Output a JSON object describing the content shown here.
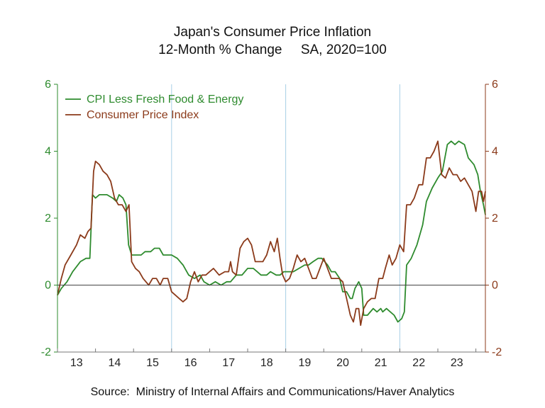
{
  "chart_data": {
    "type": "line",
    "title": "Japan's Consumer Price Inflation",
    "subtitle": "12-Month % Change     SA, 2020=100",
    "ylim": [
      -2,
      6
    ],
    "yticks": [
      "-2",
      "0",
      "2",
      "4",
      "6"
    ],
    "y_right_ticks": [
      "-2",
      "0",
      "2",
      "4",
      "6"
    ],
    "xlim": [
      2013,
      2024.25
    ],
    "x_tick_labels": [
      {
        "label": "13",
        "x": 2013.5
      },
      {
        "label": "14",
        "x": 2014.5
      },
      {
        "label": "15",
        "x": 2015.5
      },
      {
        "label": "16",
        "x": 2016.5
      },
      {
        "label": "17",
        "x": 2017.5
      },
      {
        "label": "18",
        "x": 2018.5
      },
      {
        "label": "19",
        "x": 2019.5
      },
      {
        "label": "20",
        "x": 2020.5
      },
      {
        "label": "21",
        "x": 2021.5
      },
      {
        "label": "22",
        "x": 2022.5
      },
      {
        "label": "23",
        "x": 2023.5
      }
    ],
    "vertical_gridlines": [
      2016,
      2019,
      2022
    ],
    "legend_position": "top-left",
    "series": [
      {
        "name": "CPI Less Fresh Food & Energy",
        "color": "#2e8b2e",
        "points": [
          [
            2013.0,
            -0.3
          ],
          [
            2013.1,
            -0.1
          ],
          [
            2013.25,
            0.1
          ],
          [
            2013.4,
            0.4
          ],
          [
            2013.6,
            0.7
          ],
          [
            2013.75,
            0.8
          ],
          [
            2013.85,
            0.8
          ],
          [
            2013.92,
            2.7
          ],
          [
            2014.0,
            2.6
          ],
          [
            2014.1,
            2.7
          ],
          [
            2014.3,
            2.7
          ],
          [
            2014.45,
            2.6
          ],
          [
            2014.55,
            2.5
          ],
          [
            2014.62,
            2.7
          ],
          [
            2014.72,
            2.6
          ],
          [
            2014.8,
            2.4
          ],
          [
            2014.87,
            1.2
          ],
          [
            2014.95,
            0.9
          ],
          [
            2015.05,
            0.9
          ],
          [
            2015.2,
            0.9
          ],
          [
            2015.3,
            1.0
          ],
          [
            2015.45,
            1.0
          ],
          [
            2015.55,
            1.1
          ],
          [
            2015.68,
            1.1
          ],
          [
            2015.78,
            0.9
          ],
          [
            2015.9,
            0.9
          ],
          [
            2016.0,
            0.9
          ],
          [
            2016.15,
            0.8
          ],
          [
            2016.3,
            0.6
          ],
          [
            2016.45,
            0.3
          ],
          [
            2016.6,
            0.2
          ],
          [
            2016.75,
            0.3
          ],
          [
            2016.85,
            0.1
          ],
          [
            2017.0,
            0.0
          ],
          [
            2017.15,
            0.1
          ],
          [
            2017.3,
            0.0
          ],
          [
            2017.45,
            0.1
          ],
          [
            2017.55,
            0.1
          ],
          [
            2017.7,
            0.3
          ],
          [
            2017.85,
            0.3
          ],
          [
            2018.0,
            0.5
          ],
          [
            2018.15,
            0.5
          ],
          [
            2018.25,
            0.4
          ],
          [
            2018.35,
            0.3
          ],
          [
            2018.5,
            0.3
          ],
          [
            2018.6,
            0.4
          ],
          [
            2018.75,
            0.3
          ],
          [
            2018.85,
            0.3
          ],
          [
            2018.95,
            0.4
          ],
          [
            2019.1,
            0.4
          ],
          [
            2019.2,
            0.4
          ],
          [
            2019.35,
            0.5
          ],
          [
            2019.5,
            0.6
          ],
          [
            2019.6,
            0.6
          ],
          [
            2019.72,
            0.7
          ],
          [
            2019.85,
            0.8
          ],
          [
            2019.95,
            0.8
          ],
          [
            2020.1,
            0.6
          ],
          [
            2020.2,
            0.4
          ],
          [
            2020.3,
            0.4
          ],
          [
            2020.42,
            0.2
          ],
          [
            2020.5,
            -0.2
          ],
          [
            2020.6,
            -0.2
          ],
          [
            2020.7,
            -0.4
          ],
          [
            2020.75,
            -0.4
          ],
          [
            2020.82,
            -0.1
          ],
          [
            2020.92,
            0.1
          ],
          [
            2021.0,
            -0.1
          ],
          [
            2021.05,
            -0.9
          ],
          [
            2021.15,
            -0.9
          ],
          [
            2021.3,
            -0.7
          ],
          [
            2021.4,
            -0.8
          ],
          [
            2021.5,
            -0.7
          ],
          [
            2021.55,
            -0.8
          ],
          [
            2021.65,
            -0.7
          ],
          [
            2021.75,
            -0.8
          ],
          [
            2021.85,
            -0.9
          ],
          [
            2021.95,
            -1.1
          ],
          [
            2022.05,
            -1.0
          ],
          [
            2022.12,
            -0.8
          ],
          [
            2022.18,
            0.6
          ],
          [
            2022.3,
            0.8
          ],
          [
            2022.45,
            1.2
          ],
          [
            2022.6,
            1.8
          ],
          [
            2022.7,
            2.5
          ],
          [
            2022.85,
            2.9
          ],
          [
            2023.0,
            3.2
          ],
          [
            2023.12,
            3.4
          ],
          [
            2023.25,
            4.2
          ],
          [
            2023.35,
            4.3
          ],
          [
            2023.45,
            4.2
          ],
          [
            2023.55,
            4.3
          ],
          [
            2023.7,
            4.2
          ],
          [
            2023.8,
            3.8
          ],
          [
            2023.95,
            3.6
          ],
          [
            2024.05,
            3.3
          ],
          [
            2024.12,
            2.8
          ],
          [
            2024.2,
            2.4
          ],
          [
            2024.25,
            2.1
          ]
        ]
      },
      {
        "name": "Consumer Price Index",
        "color": "#8b3a1a",
        "points": [
          [
            2013.0,
            -0.3
          ],
          [
            2013.1,
            0.2
          ],
          [
            2013.2,
            0.6
          ],
          [
            2013.35,
            0.9
          ],
          [
            2013.5,
            1.2
          ],
          [
            2013.6,
            1.5
          ],
          [
            2013.72,
            1.4
          ],
          [
            2013.8,
            1.6
          ],
          [
            2013.88,
            1.7
          ],
          [
            2013.95,
            3.4
          ],
          [
            2014.0,
            3.7
          ],
          [
            2014.1,
            3.6
          ],
          [
            2014.2,
            3.4
          ],
          [
            2014.3,
            3.3
          ],
          [
            2014.4,
            3.1
          ],
          [
            2014.5,
            2.6
          ],
          [
            2014.6,
            2.4
          ],
          [
            2014.7,
            2.4
          ],
          [
            2014.8,
            2.2
          ],
          [
            2014.88,
            2.4
          ],
          [
            2014.95,
            0.7
          ],
          [
            2015.05,
            0.5
          ],
          [
            2015.15,
            0.4
          ],
          [
            2015.25,
            0.2
          ],
          [
            2015.4,
            0.0
          ],
          [
            2015.5,
            0.2
          ],
          [
            2015.6,
            0.2
          ],
          [
            2015.7,
            0.0
          ],
          [
            2015.78,
            0.2
          ],
          [
            2015.9,
            0.2
          ],
          [
            2016.0,
            -0.2
          ],
          [
            2016.1,
            -0.3
          ],
          [
            2016.2,
            -0.4
          ],
          [
            2016.3,
            -0.5
          ],
          [
            2016.4,
            -0.4
          ],
          [
            2016.5,
            0.1
          ],
          [
            2016.6,
            0.4
          ],
          [
            2016.7,
            0.1
          ],
          [
            2016.8,
            0.3
          ],
          [
            2016.9,
            0.3
          ],
          [
            2017.0,
            0.4
          ],
          [
            2017.1,
            0.5
          ],
          [
            2017.25,
            0.3
          ],
          [
            2017.4,
            0.4
          ],
          [
            2017.5,
            0.4
          ],
          [
            2017.55,
            0.7
          ],
          [
            2017.6,
            0.4
          ],
          [
            2017.7,
            0.3
          ],
          [
            2017.8,
            1.1
          ],
          [
            2017.9,
            1.3
          ],
          [
            2018.0,
            1.4
          ],
          [
            2018.1,
            1.2
          ],
          [
            2018.2,
            0.7
          ],
          [
            2018.3,
            0.7
          ],
          [
            2018.4,
            0.7
          ],
          [
            2018.5,
            0.9
          ],
          [
            2018.6,
            1.3
          ],
          [
            2018.7,
            1.0
          ],
          [
            2018.78,
            1.4
          ],
          [
            2018.85,
            0.8
          ],
          [
            2018.92,
            0.3
          ],
          [
            2019.0,
            0.1
          ],
          [
            2019.1,
            0.2
          ],
          [
            2019.2,
            0.5
          ],
          [
            2019.3,
            0.9
          ],
          [
            2019.4,
            0.7
          ],
          [
            2019.5,
            0.8
          ],
          [
            2019.6,
            0.5
          ],
          [
            2019.7,
            0.2
          ],
          [
            2019.8,
            0.2
          ],
          [
            2019.9,
            0.5
          ],
          [
            2020.0,
            0.8
          ],
          [
            2020.1,
            0.5
          ],
          [
            2020.2,
            0.2
          ],
          [
            2020.3,
            0.2
          ],
          [
            2020.4,
            0.2
          ],
          [
            2020.5,
            0.1
          ],
          [
            2020.6,
            -0.4
          ],
          [
            2020.7,
            -0.9
          ],
          [
            2020.78,
            -1.1
          ],
          [
            2020.85,
            -0.7
          ],
          [
            2020.92,
            -0.7
          ],
          [
            2020.97,
            -1.2
          ],
          [
            2021.05,
            -0.7
          ],
          [
            2021.15,
            -0.5
          ],
          [
            2021.25,
            -0.4
          ],
          [
            2021.35,
            -0.4
          ],
          [
            2021.45,
            0.2
          ],
          [
            2021.55,
            0.2
          ],
          [
            2021.62,
            0.5
          ],
          [
            2021.72,
            0.9
          ],
          [
            2021.8,
            0.6
          ],
          [
            2021.9,
            0.8
          ],
          [
            2022.0,
            1.2
          ],
          [
            2022.1,
            1.0
          ],
          [
            2022.18,
            2.4
          ],
          [
            2022.28,
            2.4
          ],
          [
            2022.38,
            2.6
          ],
          [
            2022.5,
            3.0
          ],
          [
            2022.6,
            3.0
          ],
          [
            2022.7,
            3.8
          ],
          [
            2022.8,
            3.8
          ],
          [
            2022.9,
            4.0
          ],
          [
            2023.0,
            4.3
          ],
          [
            2023.1,
            3.3
          ],
          [
            2023.2,
            3.2
          ],
          [
            2023.3,
            3.5
          ],
          [
            2023.4,
            3.3
          ],
          [
            2023.5,
            3.3
          ],
          [
            2023.6,
            3.1
          ],
          [
            2023.7,
            3.2
          ],
          [
            2023.8,
            3.0
          ],
          [
            2023.9,
            2.8
          ],
          [
            2024.0,
            2.2
          ],
          [
            2024.07,
            2.8
          ],
          [
            2024.15,
            2.8
          ],
          [
            2024.2,
            2.5
          ],
          [
            2024.25,
            2.8
          ]
        ]
      }
    ],
    "axis_colors": {
      "left": "#2e8b2e",
      "right": "#8b3a1a",
      "grid": "#a8cfe6",
      "zero": "#444444",
      "frame": "#777777"
    }
  },
  "source": "Source:  Ministry of Internal Affairs and Communications/Haver Analytics"
}
